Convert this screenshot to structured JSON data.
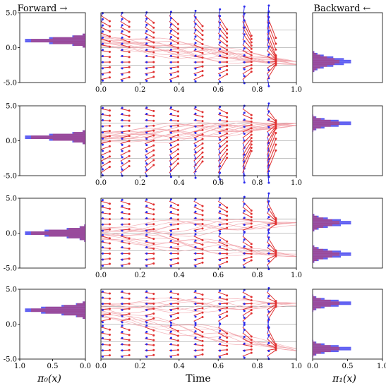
{
  "header": {
    "forward_label": "Forward →",
    "backward_label": "Backward ←"
  },
  "axis_labels": {
    "left_xlabel": "π₀(x)",
    "mid_xlabel": "Time",
    "right_xlabel": "π₁(x)"
  },
  "colors": {
    "forward": "#e03030",
    "backward": "#2a2aee",
    "traj": "#f0a0a8",
    "axis": "#000000",
    "grid": "#888888"
  },
  "chart_data": {
    "type": "histogram+flow",
    "n_rows": 4,
    "left_xticks": [
      "1.0",
      "0.5",
      "0.0"
    ],
    "left_xlim": [
      1.0,
      0.0
    ],
    "right_xticks": [
      "0.0",
      "0.5",
      "1.0"
    ],
    "right_xlim": [
      0.0,
      1.0
    ],
    "mid_xticks": [
      "0.0",
      "0.2",
      "0.4",
      "0.6",
      "0.8",
      "1.0"
    ],
    "mid_xlim": [
      0.0,
      1.0
    ],
    "ylim": [
      -5.0,
      5.0
    ],
    "yticks": [
      "5.0",
      "0.0",
      "-5.0"
    ],
    "arrow_times": [
      0.0,
      0.1,
      0.225,
      0.35,
      0.475,
      0.6,
      0.725,
      0.85
    ],
    "rows": [
      {
        "start_modes": [
          {
            "mu": 1.0,
            "sigma": 0.35,
            "weight": 1.0
          }
        ],
        "end_modes": [
          {
            "mu": -2.0,
            "sigma": 0.55,
            "weight": 1.0
          }
        ],
        "grid_lines": [
          2.5,
          0.0,
          -2.5
        ]
      },
      {
        "start_modes": [
          {
            "mu": 0.5,
            "sigma": 0.35,
            "weight": 1.0
          }
        ],
        "end_modes": [
          {
            "mu": 2.5,
            "sigma": 0.4,
            "weight": 1.0
          }
        ],
        "grid_lines": [
          2.5,
          0.0,
          -2.5
        ]
      },
      {
        "start_modes": [
          {
            "mu": 0.0,
            "sigma": 0.4,
            "weight": 1.0
          }
        ],
        "end_modes": [
          {
            "mu": 1.5,
            "sigma": 0.45,
            "weight": 0.5
          },
          {
            "mu": -3.0,
            "sigma": 0.45,
            "weight": 0.5
          }
        ],
        "grid_lines": [
          2.0,
          0.0,
          -2.5
        ]
      },
      {
        "start_modes": [
          {
            "mu": 2.0,
            "sigma": 0.45,
            "weight": 1.0
          }
        ],
        "end_modes": [
          {
            "mu": 3.0,
            "sigma": 0.4,
            "weight": 0.5
          },
          {
            "mu": -3.5,
            "sigma": 0.4,
            "weight": 0.5
          }
        ],
        "grid_lines": [
          2.5,
          0.0,
          -2.5
        ]
      }
    ]
  }
}
